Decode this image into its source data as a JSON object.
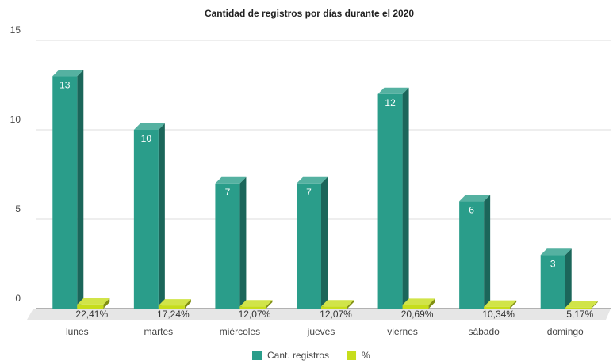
{
  "chart_data": {
    "type": "bar3d",
    "title": "Cantidad de registros por días durante el 2020",
    "categories": [
      "lunes",
      "martes",
      "miércoles",
      "jueves",
      "viernes",
      "sábado",
      "domingo"
    ],
    "series": [
      {
        "name": "Cant. registros",
        "color": "#2a9d8a",
        "values": [
          13,
          10,
          7,
          7,
          12,
          6,
          3
        ]
      },
      {
        "name": "%",
        "color": "#c6dd1c",
        "values": [
          0.2241,
          0.1724,
          0.1207,
          0.1207,
          0.2069,
          0.1034,
          0.0517
        ],
        "value_labels": [
          "22,41%",
          "17,24%",
          "12,07%",
          "12,07%",
          "20,69%",
          "10,34%",
          "5,17%"
        ]
      }
    ],
    "ylim": [
      0,
      15
    ],
    "yticks": [
      0,
      5,
      10,
      15
    ],
    "grid": true,
    "legend": "bottom"
  }
}
